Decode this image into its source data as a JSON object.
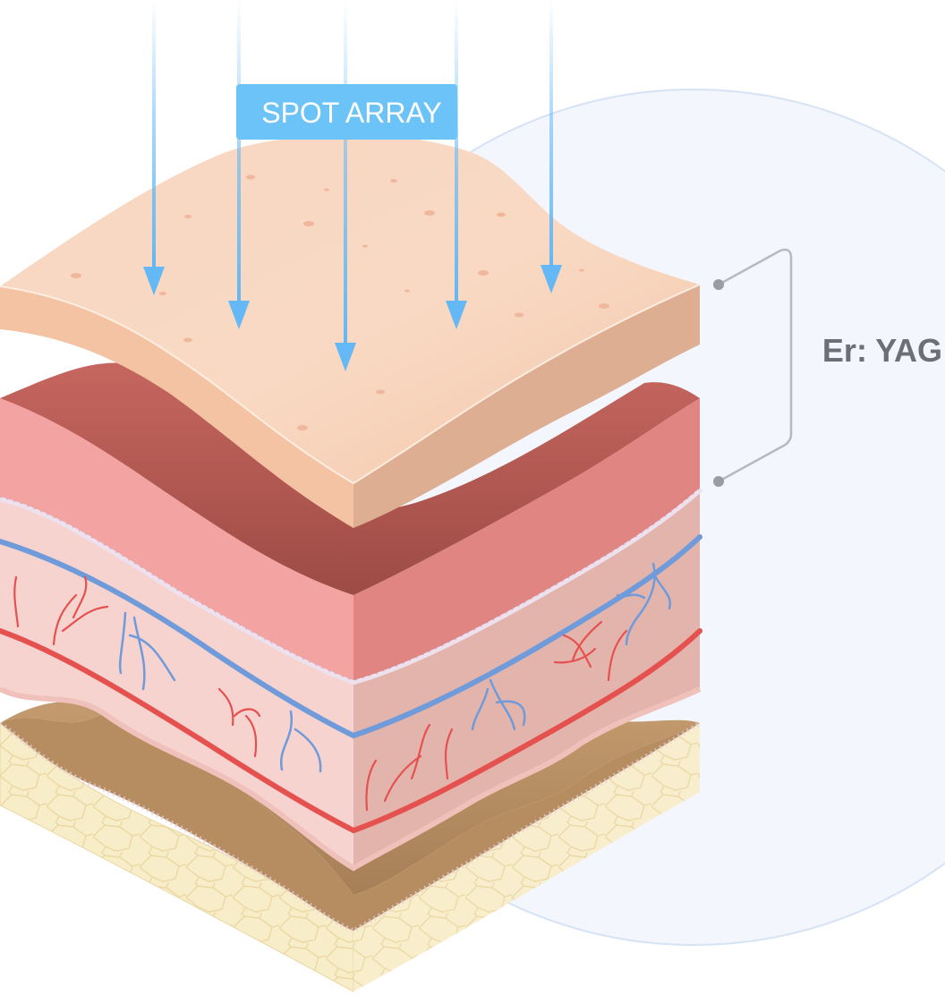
{
  "spot_label": "SPOT ARRAY",
  "laser_label": "Er: YAG",
  "colors": {
    "arrow": "#63B8F5",
    "label_bg": "#6CC3F7",
    "label_text": "#FFFFFF",
    "bracket": "#B8B8BE",
    "laser_text": "#6E6E78",
    "circle_fill": "#F3F6FC",
    "circle_stroke": "#D6E2F5",
    "epidermis": "#F6CDB3",
    "dermis": "#F3A4A2",
    "tissue": "#F5D0CC",
    "vein": "#6F9BDB",
    "artery": "#E5514F",
    "subcutis": "#C9A57C",
    "fat": "#F6E8BE"
  },
  "icons": [
    "arrow-down-icon",
    "bracket-icon"
  ]
}
